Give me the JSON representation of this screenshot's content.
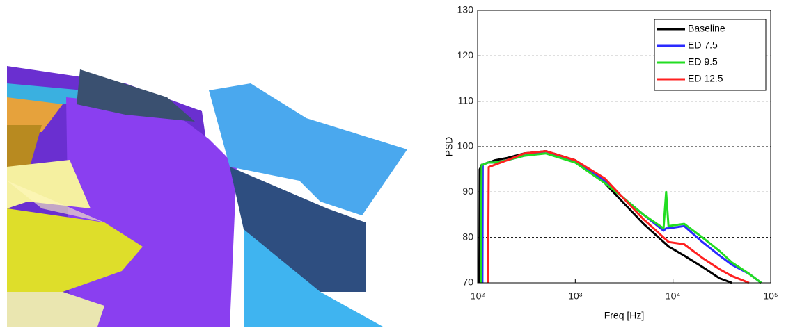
{
  "chart_data": {
    "type": "line",
    "y_label": "PSD",
    "x_label": "Freq [Hz]",
    "log_x": true,
    "grid": true,
    "legend": "upper right",
    "xlim": [
      100,
      100000
    ],
    "ylim": [
      70,
      130
    ],
    "xticks": [
      {
        "value": 100,
        "label": "10²"
      },
      {
        "value": 1000,
        "label": "10³"
      },
      {
        "value": 10000,
        "label": "10⁴"
      },
      {
        "value": 100000,
        "label": "10⁵"
      }
    ],
    "yticks": [
      70,
      80,
      90,
      100,
      110,
      120,
      130
    ],
    "x": [
      104,
      105,
      108,
      110,
      112,
      113,
      128,
      130,
      150,
      200,
      300,
      500,
      1000,
      2000,
      3000,
      5000,
      8000,
      8500,
      9000,
      13000,
      20000,
      30000,
      40000,
      60000,
      80000
    ],
    "series": [
      {
        "name": "Baseline",
        "color": "#000000",
        "values": [
          70,
          95,
          95.5,
          96,
          96,
          96,
          96.5,
          96.5,
          97,
          97.5,
          98.5,
          99,
          97,
          92,
          88,
          83,
          79,
          78.5,
          78,
          76,
          73.5,
          71,
          70,
          null,
          null
        ]
      },
      {
        "name": "ED 7.5",
        "color": "#2a2aff",
        "values": [
          null,
          null,
          null,
          null,
          70,
          96,
          96.5,
          96.5,
          96.5,
          97,
          98,
          99,
          96.5,
          92.5,
          89,
          85,
          81.5,
          82,
          82,
          82.5,
          79,
          76,
          74,
          72,
          70
        ]
      },
      {
        "name": "ED 9.5",
        "color": "#22dd22",
        "values": [
          null,
          null,
          70,
          96,
          96,
          96,
          96.5,
          96.5,
          96.5,
          97,
          98,
          98.5,
          96.5,
          92,
          89,
          85,
          82,
          90,
          82.5,
          83,
          80,
          77,
          74.5,
          72,
          70
        ]
      },
      {
        "name": "ED 12.5",
        "color": "#ff2020",
        "values": [
          null,
          null,
          null,
          null,
          null,
          null,
          70,
          95.5,
          96,
          97,
          98.5,
          99,
          97,
          93,
          89,
          84,
          80,
          79.5,
          79,
          78.5,
          75.5,
          73,
          71.5,
          70,
          null
        ]
      }
    ]
  }
}
